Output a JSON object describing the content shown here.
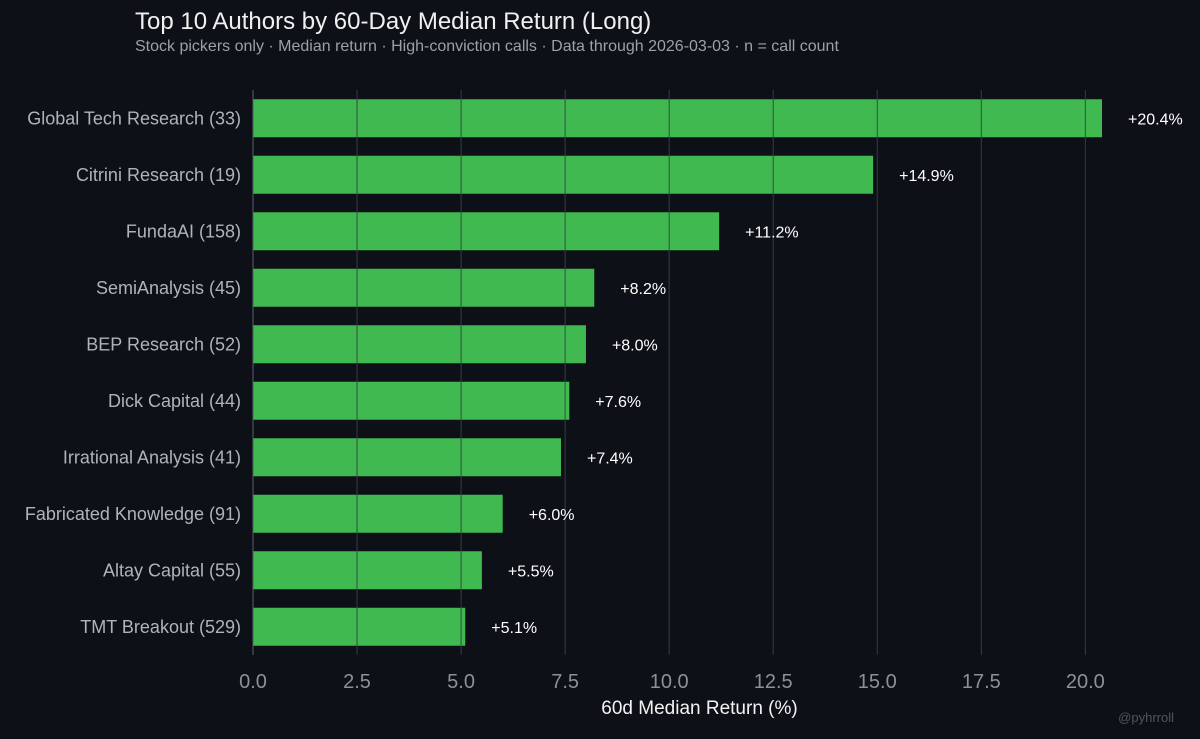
{
  "header": {
    "title": "Top 10 Authors by 60-Day Median Return (Long)",
    "subtitle": "Stock pickers only · Median return · High-conviction calls · Data through 2026-03-03 · n = call count"
  },
  "watermark": "@pyhrroll",
  "colors": {
    "background": "#0d1117",
    "bar": "#3fb950",
    "grid": "#30363d"
  },
  "chart_data": {
    "type": "bar",
    "orientation": "horizontal",
    "title": "Top 10 Authors by 60-Day Median Return (Long)",
    "subtitle": "Stock pickers only · Median return · High-conviction calls · Data through 2026-03-03 · n = call count",
    "xlabel": "60d Median Return (%)",
    "ylabel": "",
    "xlim": [
      0,
      20.4
    ],
    "xticks": [
      0,
      2.5,
      5,
      7.5,
      10,
      12.5,
      15,
      17.5,
      20
    ],
    "xtick_labels": [
      "0.0",
      "2.5",
      "5.0",
      "7.5",
      "10.0",
      "12.5",
      "15.0",
      "17.5",
      "20.0"
    ],
    "grid": "vertical",
    "categories": [
      "Global Tech Research  (33)",
      "Citrini Research  (19)",
      "FundaAI  (158)",
      "SemiAnalysis  (45)",
      "BEP Research  (52)",
      "Dick Capital  (44)",
      "Irrational Analysis  (41)",
      "Fabricated Knowledge  (91)",
      "Altay Capital  (55)",
      "TMT Breakout  (529)"
    ],
    "values": [
      20.4,
      14.9,
      11.2,
      8.2,
      8.0,
      7.6,
      7.4,
      6.0,
      5.5,
      5.1
    ],
    "value_labels": [
      "+20.4%",
      "+14.9%",
      "+11.2%",
      "+8.2%",
      "+8.0%",
      "+7.6%",
      "+7.4%",
      "+6.0%",
      "+5.5%",
      "+5.1%"
    ]
  }
}
